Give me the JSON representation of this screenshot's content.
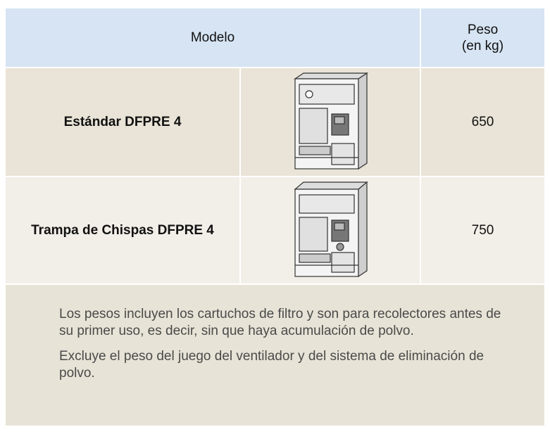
{
  "header": {
    "model": "Modelo",
    "weight": [
      "Peso",
      "(en kg)"
    ]
  },
  "rows": [
    {
      "model": "Estándar DFPRE 4",
      "weight": 650
    },
    {
      "model": "Trampa de Chispas DFPRE 4",
      "weight": 750
    }
  ],
  "notes": [
    "Los pesos incluyen los cartuchos de filtro y son para recolectores antes de su primer uso, es decir, sin que haya acumulación de polvo.",
    "Excluye el peso del juego del ventilador y del sistema de eliminación de polvo."
  ]
}
